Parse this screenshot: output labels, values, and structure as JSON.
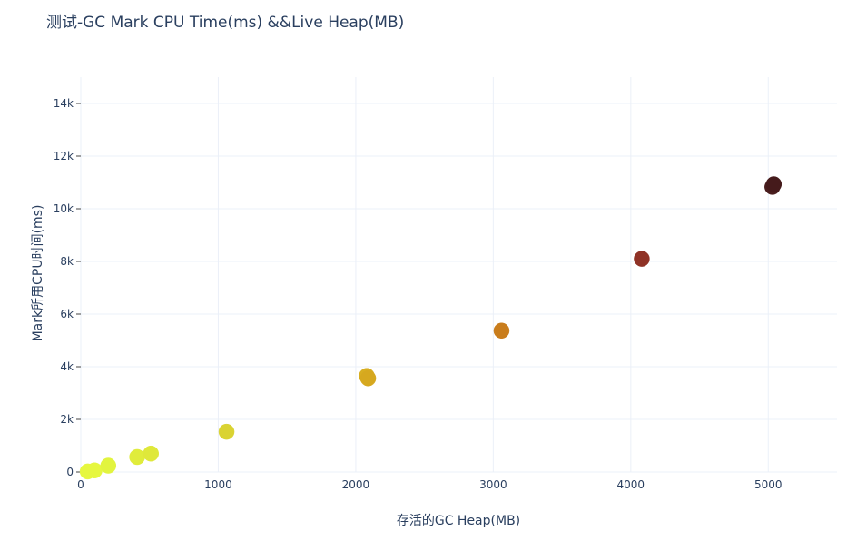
{
  "chart_data": {
    "type": "scatter",
    "title": "测试-GC Mark CPU Time(ms) &&Live Heap(MB)",
    "xlabel": "存活的GC Heap(MB)",
    "ylabel": "Mark所用CPU时间(ms)",
    "xlim": [
      0,
      5500
    ],
    "ylim": [
      0,
      15000
    ],
    "x_ticks": [
      0,
      1000,
      2000,
      3000,
      4000,
      5000
    ],
    "x_tick_labels": [
      "0",
      "1000",
      "2000",
      "3000",
      "4000",
      "5000"
    ],
    "y_ticks": [
      0,
      2000,
      4000,
      6000,
      8000,
      10000,
      12000,
      14000
    ],
    "y_tick_labels": [
      "0",
      "2k",
      "4k",
      "6k",
      "8k",
      "10k",
      "12k",
      "14k"
    ],
    "grid": true,
    "colorscale": [
      "#e2f543",
      "#d8d82e",
      "#d4ad1f",
      "#c97d1c",
      "#9e3b25",
      "#4a1a1c"
    ],
    "points": [
      {
        "x": 50,
        "y": 20,
        "color": "#e6f73f"
      },
      {
        "x": 100,
        "y": 60,
        "color": "#e6f73f"
      },
      {
        "x": 200,
        "y": 240,
        "color": "#e2f43f"
      },
      {
        "x": 410,
        "y": 570,
        "color": "#e0ec3b"
      },
      {
        "x": 510,
        "y": 700,
        "color": "#dfe83a"
      },
      {
        "x": 1060,
        "y": 1530,
        "color": "#dad332"
      },
      {
        "x": 2080,
        "y": 3650,
        "color": "#d8ae21"
      },
      {
        "x": 2090,
        "y": 3560,
        "color": "#d6a81f"
      },
      {
        "x": 3060,
        "y": 5370,
        "color": "#c97d1c"
      },
      {
        "x": 4080,
        "y": 8100,
        "color": "#8f3226"
      },
      {
        "x": 5030,
        "y": 10830,
        "color": "#4a1e1e"
      },
      {
        "x": 5040,
        "y": 10930,
        "color": "#451a1b"
      }
    ]
  }
}
